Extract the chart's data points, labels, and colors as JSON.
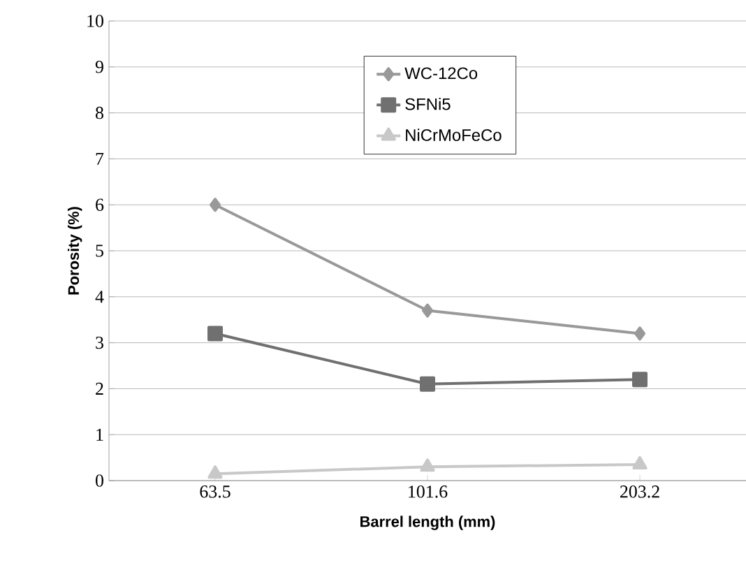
{
  "chart_data": {
    "type": "line",
    "xlabel": "Barrel length (mm)",
    "ylabel": "Porosity (%)",
    "categories": [
      "63.5",
      "101.6",
      "203.2"
    ],
    "ylim": [
      0,
      10
    ],
    "yticks": [
      0,
      1,
      2,
      3,
      4,
      5,
      6,
      7,
      8,
      9,
      10
    ],
    "grid": "y",
    "legend": "top",
    "series": [
      {
        "name": "WC-12Co",
        "color": "#999999",
        "marker": "diamond",
        "values": [
          6.0,
          3.7,
          3.2
        ]
      },
      {
        "name": "SFNi5",
        "color": "#707070",
        "marker": "square",
        "values": [
          3.2,
          2.1,
          2.2
        ]
      },
      {
        "name": "NiCrMoFeCo",
        "color": "#c8c8c8",
        "marker": "triangle",
        "values": [
          0.15,
          0.3,
          0.35
        ]
      }
    ]
  }
}
